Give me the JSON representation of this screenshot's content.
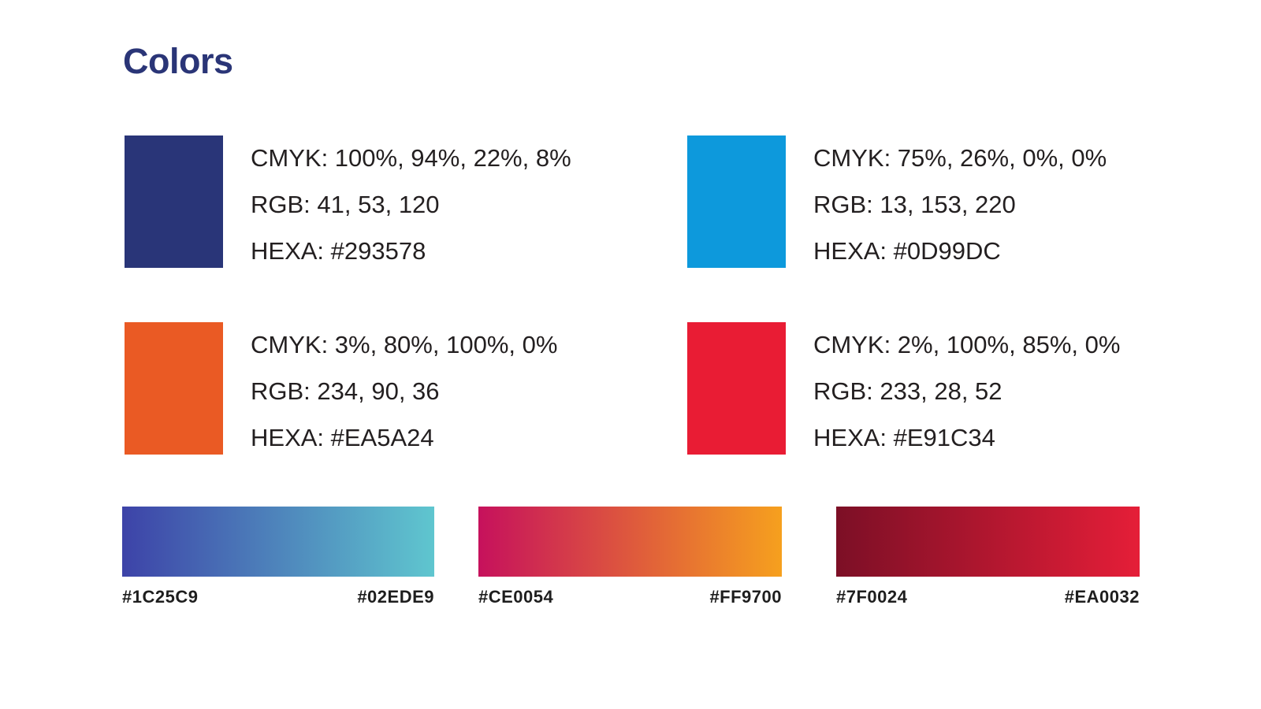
{
  "page": {
    "title": "Colors"
  },
  "theme": {
    "background": "#FFFFFF",
    "title_color": "#2A3577",
    "text_color": "#231F20",
    "label_color": "#1E1E1E"
  },
  "palette": [
    {
      "name": "navy",
      "hex": "#293578",
      "cmyk": "CMYK: 100%, 94%, 22%, 8%",
      "rgb": "RGB: 41, 53, 120",
      "hexa": "HEXA: #293578"
    },
    {
      "name": "blue",
      "hex": "#0D99DC",
      "cmyk": "CMYK: 75%, 26%, 0%, 0%",
      "rgb": "RGB: 13, 153, 220",
      "hexa": "HEXA: #0D99DC"
    },
    {
      "name": "orange",
      "hex": "#EA5A24",
      "cmyk": "CMYK: 3%, 80%, 100%, 0%",
      "rgb": "RGB: 234, 90, 36",
      "hexa": "HEXA: #EA5A24"
    },
    {
      "name": "red",
      "hex": "#E91C34",
      "cmyk": "CMYK: 2%, 100%, 85%, 0%",
      "rgb": "RGB: 233, 28, 52",
      "hexa": "HEXA: #E91C34"
    }
  ],
  "gradients": [
    {
      "name": "blue-to-cyan",
      "start_label": "#1C25C9",
      "end_label": "#02EDE9",
      "render_start": "#3D43A8",
      "render_end": "#5FC6CF"
    },
    {
      "name": "magenta-to-orange",
      "start_label": "#CE0054",
      "end_label": "#FF9700",
      "render_start": "#C6115C",
      "render_end": "#F6A01E"
    },
    {
      "name": "maroon-to-red",
      "start_label": "#7F0024",
      "end_label": "#EA0032",
      "render_start": "#7C0F26",
      "render_end": "#E51E38"
    }
  ]
}
